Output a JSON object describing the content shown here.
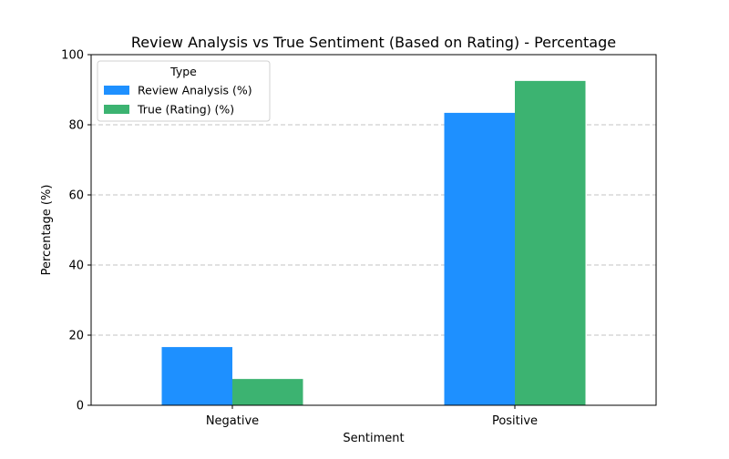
{
  "chart_data": {
    "type": "bar",
    "title": "Review Analysis vs True Sentiment (Based on Rating) - Percentage",
    "xlabel": "Sentiment",
    "ylabel": "Percentage (%)",
    "categories": [
      "Negative",
      "Positive"
    ],
    "series": [
      {
        "name": "Review Analysis (%)",
        "color": "#1e90ff",
        "values": [
          16.6,
          83.4
        ]
      },
      {
        "name": "True (Rating) (%)",
        "color": "#3cb371",
        "values": [
          7.5,
          92.5
        ]
      }
    ],
    "ylim": [
      0,
      100
    ],
    "yticks": [
      0,
      20,
      40,
      60,
      80,
      100
    ],
    "grid": "y-dashed",
    "legend": {
      "title": "Type",
      "placement": "top-left"
    }
  }
}
